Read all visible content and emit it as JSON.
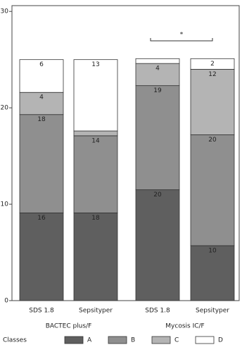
{
  "chart_data": {
    "type": "bar",
    "stacked": true,
    "categories": [
      "SDS 1.8",
      "Sepsityper",
      "SDS 1.8",
      "Sepsityper"
    ],
    "groups": [
      "BACTEC plus/F",
      "Mycosis IC/F"
    ],
    "series": [
      {
        "name": "A",
        "color": "#5f5f5f",
        "values": [
          9.1,
          9.1,
          11.5,
          5.7
        ],
        "counts": [
          16,
          18,
          20,
          10
        ]
      },
      {
        "name": "B",
        "color": "#8f8f8f",
        "values": [
          10.2,
          8.0,
          10.8,
          11.5
        ],
        "counts": [
          18,
          14,
          19,
          20
        ]
      },
      {
        "name": "C",
        "color": "#b4b4b4",
        "values": [
          2.3,
          0.5,
          2.3,
          6.8
        ],
        "counts": [
          4,
          null,
          4,
          12
        ]
      },
      {
        "name": "D",
        "color": "#ffffff",
        "values": [
          3.4,
          7.4,
          0.5,
          1.1
        ],
        "counts": [
          6,
          13,
          null,
          2
        ]
      }
    ],
    "legend_title": "Classes",
    "annotation": "*",
    "ylim": [
      0,
      30.6
    ],
    "yticks": [
      0,
      10,
      20,
      30
    ]
  }
}
